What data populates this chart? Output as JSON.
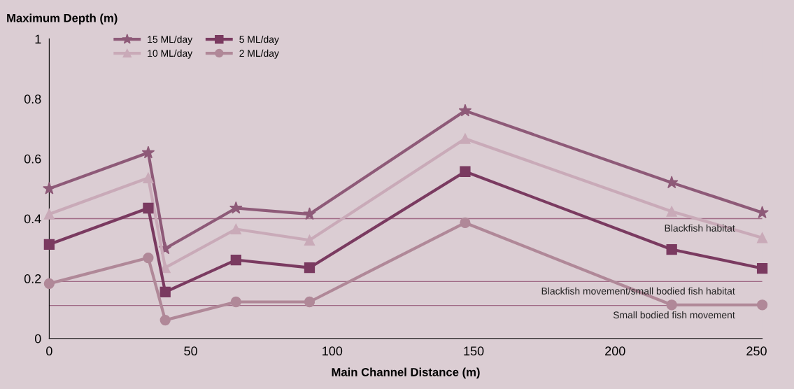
{
  "chart_data": {
    "type": "line",
    "ylabel": "Maximum Depth (m)",
    "xlabel": "Main Channel Distance (m)",
    "x": [
      0,
      35,
      41,
      66,
      92,
      147,
      220,
      252
    ],
    "series": [
      {
        "name": "15 ML/day",
        "color": "#8e5a78",
        "marker": "star",
        "values": [
          0.5,
          0.62,
          0.3,
          0.435,
          0.415,
          0.76,
          0.52,
          0.42
        ]
      },
      {
        "name": "10 ML/day",
        "color": "#c9aab8",
        "marker": "triangle",
        "values": [
          0.415,
          0.536,
          0.236,
          0.365,
          0.328,
          0.667,
          0.424,
          0.336
        ]
      },
      {
        "name": "5 ML/day",
        "color": "#7a3a60",
        "marker": "square",
        "values": [
          0.314,
          0.435,
          0.155,
          0.262,
          0.236,
          0.557,
          0.297,
          0.234
        ]
      },
      {
        "name": "2 ML/day",
        "color": "#b08898",
        "marker": "circle",
        "values": [
          0.183,
          0.269,
          0.061,
          0.122,
          0.122,
          0.386,
          0.112,
          0.112
        ]
      }
    ],
    "xlim": [
      0,
      252
    ],
    "xticks": [
      0,
      50,
      100,
      150,
      200,
      250
    ],
    "ylim": [
      0,
      1
    ],
    "yticks": [
      0,
      0.2,
      0.4,
      0.6,
      0.8,
      1
    ],
    "ref_lines": [
      {
        "axis": "y",
        "value": 0.4,
        "label": "Blackfish habitat",
        "color": "#a06a85"
      },
      {
        "axis": "y",
        "value": 0.19,
        "label": "Blackfish movement/small bodied fish habitat",
        "color": "#a06a85"
      },
      {
        "axis": "y",
        "value": 0.11,
        "label": "Small bodied fish movement",
        "color": "#a06a85"
      }
    ],
    "grid": false,
    "legend": "top left",
    "line_style": "solid"
  }
}
